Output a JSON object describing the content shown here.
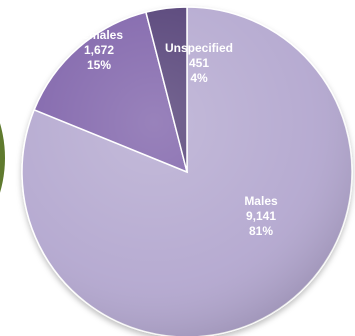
{
  "chart_data": {
    "type": "pie",
    "slices": [
      {
        "name": "Males",
        "value": 9141,
        "value_label": "9,141",
        "percent_label": "81%",
        "color": "#b3a7cf"
      },
      {
        "name": "Females",
        "value": 1672,
        "value_label": "1,672",
        "percent_label": "15%",
        "color": "#7b5ea8"
      },
      {
        "name": "Unspecified",
        "value": 451,
        "value_label": "451",
        "percent_label": "4%",
        "color": "#4f3a73"
      }
    ],
    "title": "",
    "legend": "none"
  },
  "edge_circle_color": "#5f7a2e"
}
